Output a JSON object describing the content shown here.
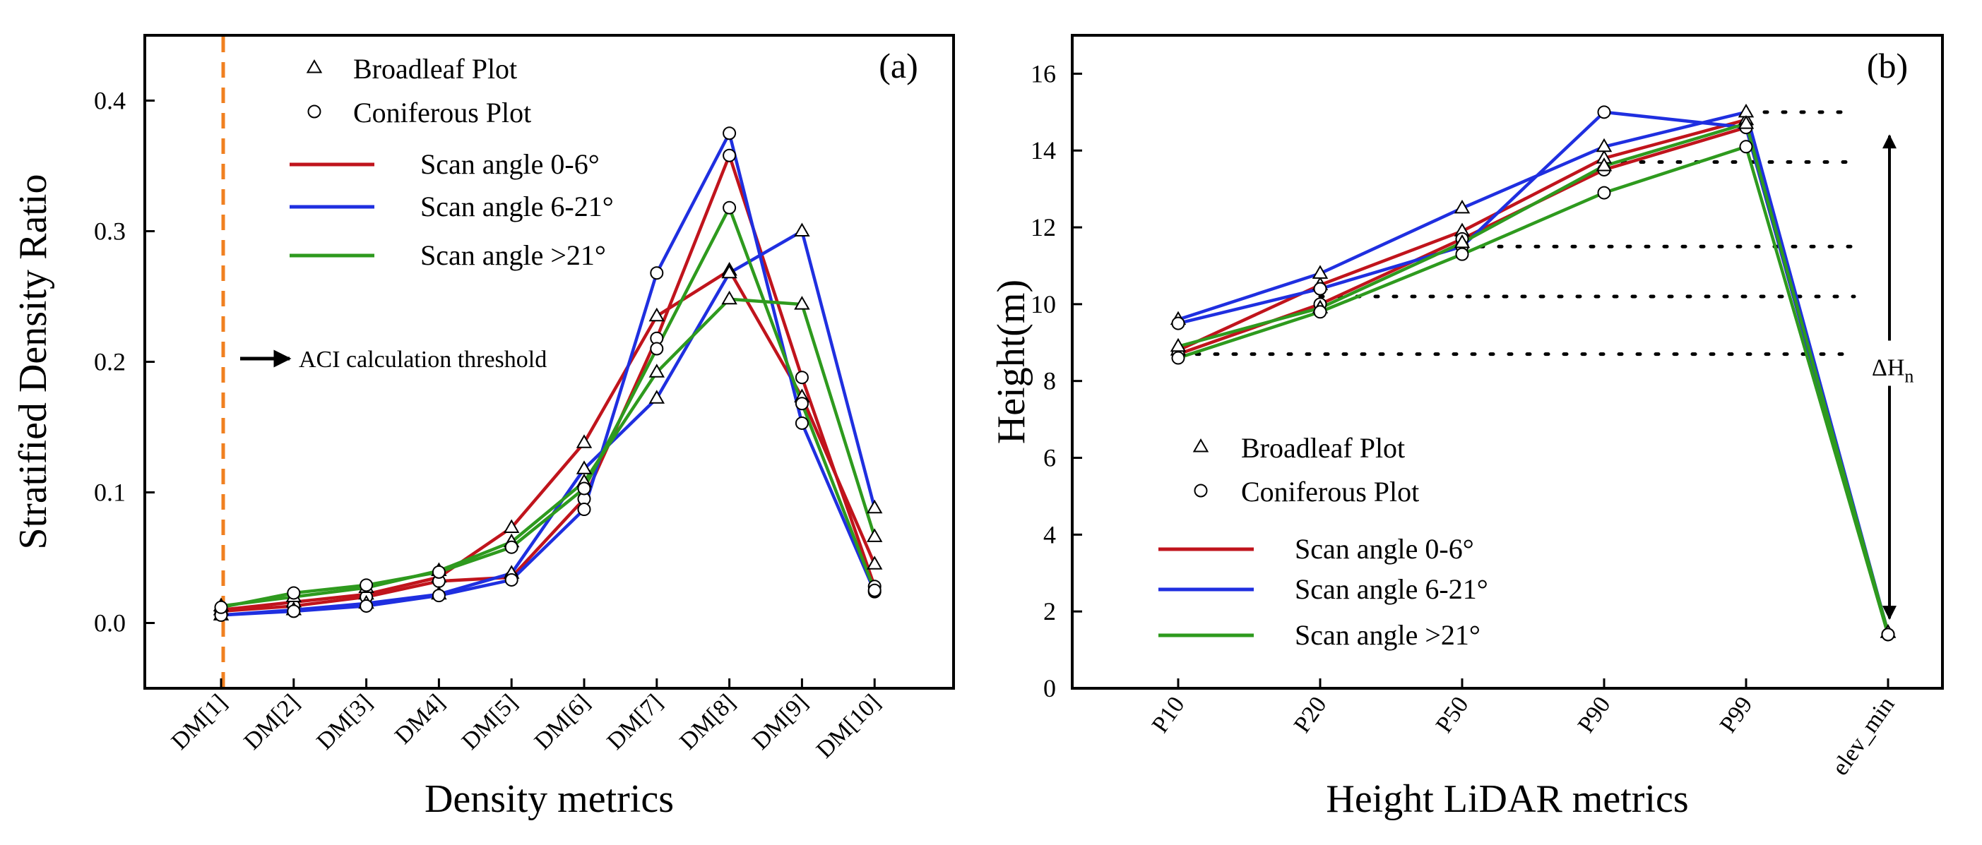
{
  "figure": {
    "colors": {
      "red": "#c0141c",
      "blue": "#1f2fe0",
      "green": "#2e9a1e",
      "threshold": "#f08020"
    }
  },
  "chart_data": [
    {
      "type": "line",
      "panel_label": "(a)",
      "xlabel": "Density metrics",
      "ylabel": "Stratified Density Ratio",
      "categories": [
        "DM[1]",
        "DM[2]",
        "DM[3]",
        "DM4]",
        "DM[5]",
        "DM[6]",
        "DM[7]",
        "DM[8]",
        "DM[9]",
        "DM[10]"
      ],
      "ylim": [
        -0.05,
        0.45
      ],
      "yticks": [
        0.0,
        0.1,
        0.2,
        0.3,
        0.4
      ],
      "ytick_labels": [
        "0.0",
        "0.1",
        "0.2",
        "0.3",
        "0.4"
      ],
      "legend": {
        "markers": [
          {
            "marker": "triangle",
            "label": "Broadleaf Plot"
          },
          {
            "marker": "circle",
            "label": "Coniferous Plot"
          }
        ],
        "lines": [
          {
            "color": "red",
            "label": "Scan angle 0-6°"
          },
          {
            "color": "blue",
            "label": "Scan angle 6-21°"
          },
          {
            "color": "green",
            "label": "Scan angle >21°"
          }
        ]
      },
      "annotation": {
        "label": "ACI calculation threshold",
        "threshold_category": "DM[1]"
      },
      "series": [
        {
          "name": "Scan angle 0-6° (Broadleaf)",
          "color": "red",
          "marker": "triangle",
          "values": [
            0.01,
            0.016,
            0.022,
            0.035,
            0.073,
            0.138,
            0.235,
            0.27,
            0.173,
            0.045
          ]
        },
        {
          "name": "Scan angle 0-6° (Coniferous)",
          "color": "red",
          "marker": "circle",
          "values": [
            0.009,
            0.013,
            0.02,
            0.032,
            0.035,
            0.095,
            0.218,
            0.358,
            0.188,
            0.028
          ]
        },
        {
          "name": "Scan angle 6-21° (Broadleaf)",
          "color": "blue",
          "marker": "triangle",
          "values": [
            0.006,
            0.01,
            0.015,
            0.022,
            0.038,
            0.118,
            0.172,
            0.268,
            0.3,
            0.088
          ]
        },
        {
          "name": "Scan angle 6-21° (Coniferous)",
          "color": "blue",
          "marker": "circle",
          "values": [
            0.006,
            0.009,
            0.013,
            0.021,
            0.033,
            0.087,
            0.268,
            0.375,
            0.153,
            0.024
          ]
        },
        {
          "name": "Scan angle >21° (Broadleaf)",
          "color": "green",
          "marker": "triangle",
          "values": [
            0.013,
            0.02,
            0.027,
            0.04,
            0.062,
            0.108,
            0.192,
            0.248,
            0.244,
            0.066
          ]
        },
        {
          "name": "Scan angle >21° (Coniferous)",
          "color": "green",
          "marker": "circle",
          "values": [
            0.012,
            0.023,
            0.029,
            0.039,
            0.058,
            0.103,
            0.21,
            0.318,
            0.168,
            0.025
          ]
        }
      ]
    },
    {
      "type": "line",
      "panel_label": "(b)",
      "xlabel": "Height LiDAR metrics",
      "ylabel": "Height(m)",
      "categories": [
        "P10",
        "P20",
        "P50",
        "P90",
        "P99",
        "elev_min"
      ],
      "ylim": [
        0,
        17
      ],
      "yticks": [
        0,
        2,
        4,
        6,
        8,
        10,
        12,
        14,
        16
      ],
      "ytick_labels": [
        "0",
        "2",
        "4",
        "6",
        "8",
        "10",
        "12",
        "14",
        "16"
      ],
      "legend": {
        "markers": [
          {
            "marker": "triangle",
            "label": "Broadleaf Plot"
          },
          {
            "marker": "circle",
            "label": "Coniferous Plot"
          }
        ],
        "lines": [
          {
            "color": "red",
            "label": "Scan angle 0-6°"
          },
          {
            "color": "blue",
            "label": "Scan angle 6-21°"
          },
          {
            "color": "green",
            "label": "Scan angle >21°"
          }
        ]
      },
      "annotation": {
        "label": "ΔH",
        "label_subscript": "n"
      },
      "reference_levels": [
        8.7,
        10.2,
        11.5,
        13.7,
        15.0
      ],
      "series": [
        {
          "name": "Scan angle 0-6° (Broadleaf)",
          "color": "red",
          "marker": "triangle",
          "values": [
            8.8,
            10.5,
            11.9,
            13.8,
            14.8,
            1.45
          ]
        },
        {
          "name": "Scan angle 0-6° (Coniferous)",
          "color": "red",
          "marker": "circle",
          "values": [
            8.7,
            10.0,
            11.7,
            13.5,
            14.6,
            1.4
          ]
        },
        {
          "name": "Scan angle 6-21° (Broadleaf)",
          "color": "blue",
          "marker": "triangle",
          "values": [
            9.6,
            10.8,
            12.5,
            14.1,
            15.0,
            1.45
          ]
        },
        {
          "name": "Scan angle 6-21° (Coniferous)",
          "color": "blue",
          "marker": "circle",
          "values": [
            9.5,
            10.4,
            11.5,
            15.0,
            14.6,
            1.4
          ]
        },
        {
          "name": "Scan angle >21° (Broadleaf)",
          "color": "green",
          "marker": "triangle",
          "values": [
            8.9,
            9.9,
            11.6,
            13.6,
            14.7,
            1.45
          ]
        },
        {
          "name": "Scan angle >21° (Coniferous)",
          "color": "green",
          "marker": "circle",
          "values": [
            8.6,
            9.8,
            11.3,
            12.9,
            14.1,
            1.4
          ]
        }
      ]
    }
  ]
}
